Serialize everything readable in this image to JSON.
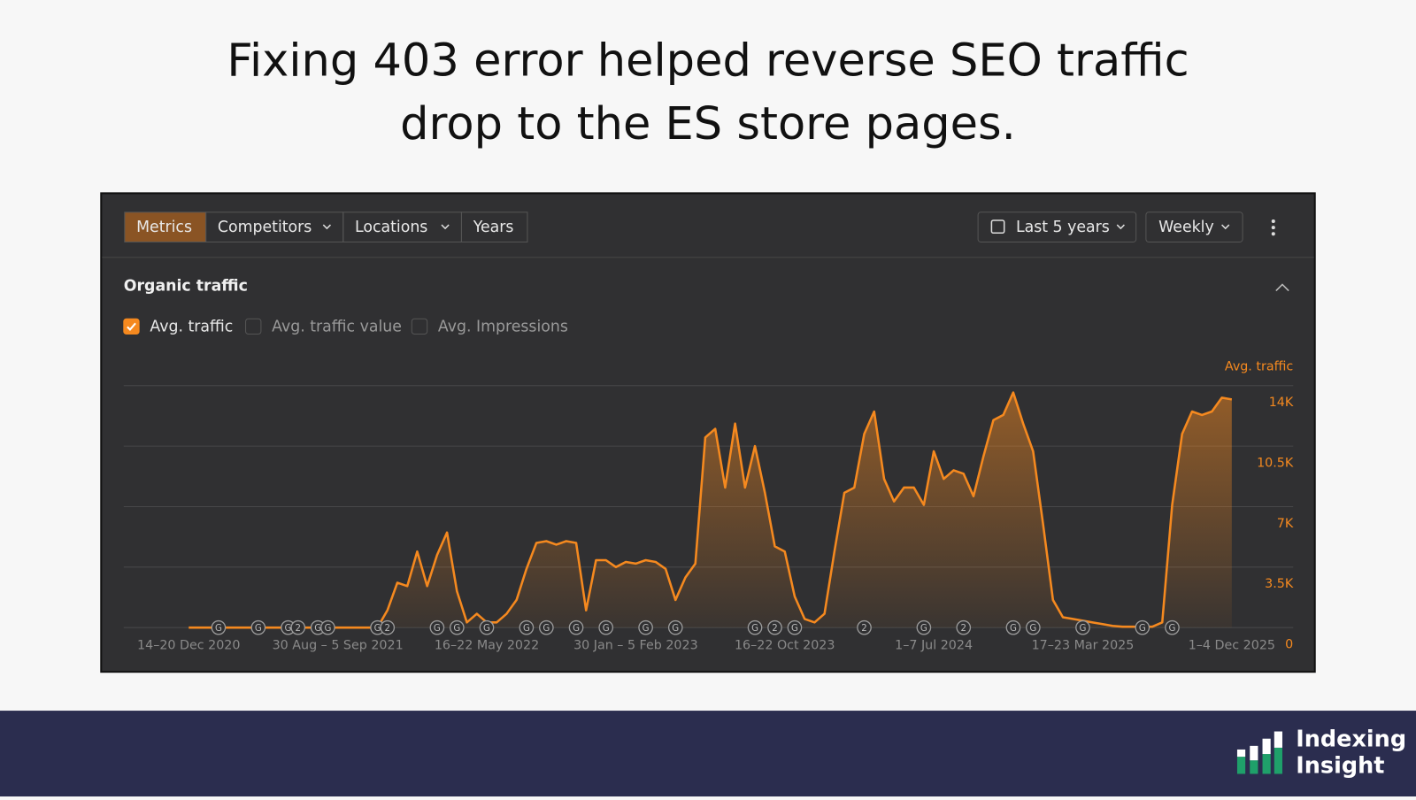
{
  "header": {
    "title_lines": [
      "Fixing 403 error helped reverse SEO traffic",
      "drop to the ES store pages."
    ]
  },
  "toolbar": {
    "tabs": [
      "Metrics",
      "Competitors",
      "Locations",
      "Years"
    ],
    "active_tab": 0,
    "range": "Last 5 years",
    "interval": "Weekly"
  },
  "panel": {
    "title": "Organic traffic",
    "options": [
      {
        "label": "Avg. traffic",
        "checked": true
      },
      {
        "label": "Avg. traffic value",
        "checked": false
      },
      {
        "label": "Avg. Impressions",
        "checked": false
      }
    ]
  },
  "chart_data": {
    "type": "area",
    "y_axis_label": "Avg. traffic",
    "color": "#f5891f",
    "categories": [
      "14–20 Dec 2020",
      null,
      null,
      null,
      null,
      null,
      null,
      null,
      null,
      null,
      null,
      null,
      null,
      null,
      null,
      "30 Aug – 5 Sep 2021",
      null,
      null,
      null,
      null,
      null,
      null,
      null,
      null,
      null,
      null,
      null,
      null,
      null,
      null,
      "16–22 May 2022",
      null,
      null,
      null,
      null,
      null,
      null,
      null,
      null,
      null,
      null,
      null,
      null,
      null,
      null,
      "30 Jan – 5 Feb 2023",
      null,
      null,
      null,
      null,
      null,
      null,
      null,
      null,
      null,
      null,
      null,
      null,
      null,
      null,
      "16–22 Oct 2023",
      null,
      null,
      null,
      null,
      null,
      null,
      null,
      null,
      null,
      null,
      null,
      null,
      null,
      null,
      "1–7 Jul 2024",
      null,
      null,
      null,
      null,
      null,
      null,
      null,
      null,
      null,
      null,
      null,
      null,
      null,
      null,
      "17–23 Mar 2025",
      null,
      null,
      null,
      null,
      null,
      null,
      null,
      null,
      null,
      null,
      null,
      null,
      null,
      null,
      "1–4 Dec 2025"
    ],
    "series": [
      {
        "name": "Avg. traffic",
        "color": "#f5891f",
        "values": [
          0,
          0,
          0,
          0,
          0,
          0,
          0,
          0,
          0,
          0,
          0,
          0,
          0,
          0,
          0,
          0,
          0,
          0,
          0,
          0,
          1000,
          2600,
          2400,
          4400,
          2400,
          4200,
          5500,
          2100,
          300,
          800,
          300,
          300,
          800,
          1600,
          3400,
          4900,
          5000,
          4800,
          5000,
          4900,
          1000,
          3900,
          3900,
          3500,
          3800,
          3700,
          3900,
          3800,
          3400,
          1600,
          2900,
          3700,
          11000,
          11500,
          8100,
          11800,
          8100,
          10500,
          7800,
          4700,
          4400,
          1800,
          500,
          300,
          800,
          4400,
          7800,
          8100,
          11200,
          12500,
          8600,
          7300,
          8100,
          8100,
          7100,
          10200,
          8600,
          9100,
          8900,
          7600,
          9900,
          12000,
          12300,
          13600,
          11800,
          10200,
          6000,
          1600,
          600,
          500,
          400,
          300,
          200,
          100,
          50,
          50,
          50,
          50,
          300,
          7100,
          11200,
          12500,
          12300,
          12500,
          13300,
          13200
        ]
      }
    ],
    "ylim": [
      0,
      15000
    ],
    "yticks": [
      0,
      {
        "value": 3500,
        "label": "3.5K"
      },
      {
        "value": 7000,
        "label": "7K"
      },
      {
        "value": 10500,
        "label": "10.5K"
      },
      {
        "value": 14000,
        "label": "14K"
      }
    ],
    "grid": true,
    "annotations": [
      {
        "at": 3,
        "label": "G"
      },
      {
        "at": 7,
        "label": "G"
      },
      {
        "at": 10,
        "label": "G"
      },
      {
        "at": 11,
        "label": "2"
      },
      {
        "at": 13,
        "label": "G"
      },
      {
        "at": 14,
        "label": "G"
      },
      {
        "at": 19,
        "label": "G"
      },
      {
        "at": 20,
        "label": "2"
      },
      {
        "at": 25,
        "label": "G"
      },
      {
        "at": 27,
        "label": "G"
      },
      {
        "at": 30,
        "label": "G"
      },
      {
        "at": 34,
        "label": "G"
      },
      {
        "at": 36,
        "label": "G"
      },
      {
        "at": 39,
        "label": "G"
      },
      {
        "at": 42,
        "label": "G"
      },
      {
        "at": 46,
        "label": "G"
      },
      {
        "at": 49,
        "label": "G"
      },
      {
        "at": 57,
        "label": "G"
      },
      {
        "at": 59,
        "label": "2"
      },
      {
        "at": 61,
        "label": "G"
      },
      {
        "at": 68,
        "label": "2"
      },
      {
        "at": 74,
        "label": "G"
      },
      {
        "at": 78,
        "label": "2"
      },
      {
        "at": 83,
        "label": "G"
      },
      {
        "at": 85,
        "label": "G"
      },
      {
        "at": 90,
        "label": "G"
      },
      {
        "at": 96,
        "label": "G"
      },
      {
        "at": 99,
        "label": "G"
      }
    ]
  },
  "logo": {
    "lines": [
      "Indexing",
      "Insight"
    ]
  }
}
